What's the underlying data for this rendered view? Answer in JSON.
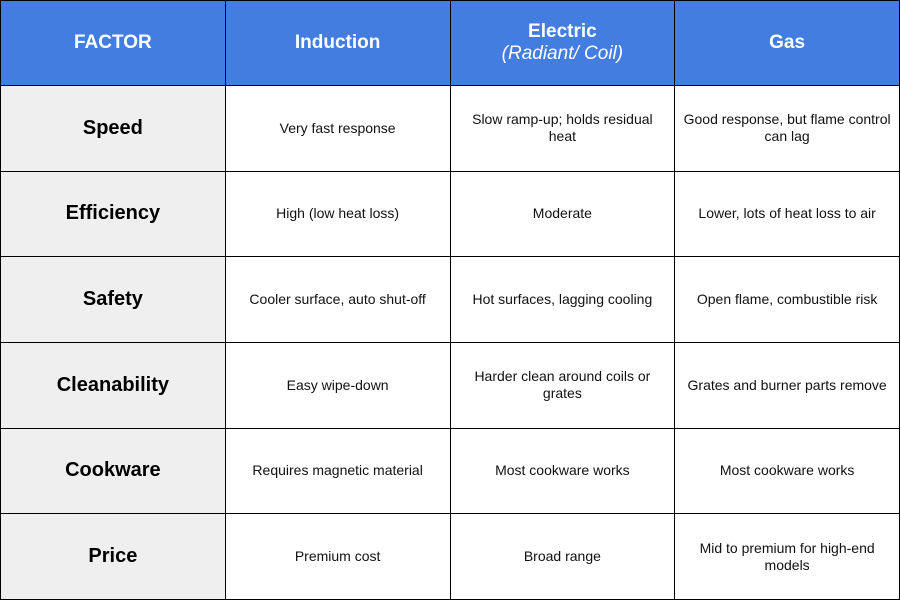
{
  "header": {
    "factor": "FACTOR",
    "columns": [
      {
        "title": "Induction",
        "subtitle": ""
      },
      {
        "title": "Electric",
        "subtitle": "(Radiant/ Coil)"
      },
      {
        "title": "Gas",
        "subtitle": ""
      }
    ]
  },
  "rows": [
    {
      "factor": "Speed",
      "cells": [
        "Very fast response",
        "Slow ramp-up; holds residual heat",
        "Good response, but flame control can lag"
      ]
    },
    {
      "factor": "Efficiency",
      "cells": [
        "High (low heat loss)",
        "Moderate",
        "Lower, lots of heat loss to air"
      ]
    },
    {
      "factor": "Safety",
      "cells": [
        "Cooler surface, auto shut-off",
        "Hot surfaces, lagging cooling",
        "Open flame, combustible risk"
      ]
    },
    {
      "factor": "Cleanability",
      "cells": [
        "Easy wipe-down",
        "Harder clean around coils or grates",
        "Grates and burner parts remove"
      ]
    },
    {
      "factor": "Cookware",
      "cells": [
        "Requires magnetic material",
        "Most cookware works",
        "Most cookware works"
      ]
    },
    {
      "factor": "Price",
      "cells": [
        "Premium cost",
        "Broad range",
        "Mid to premium for high-end models"
      ]
    }
  ]
}
